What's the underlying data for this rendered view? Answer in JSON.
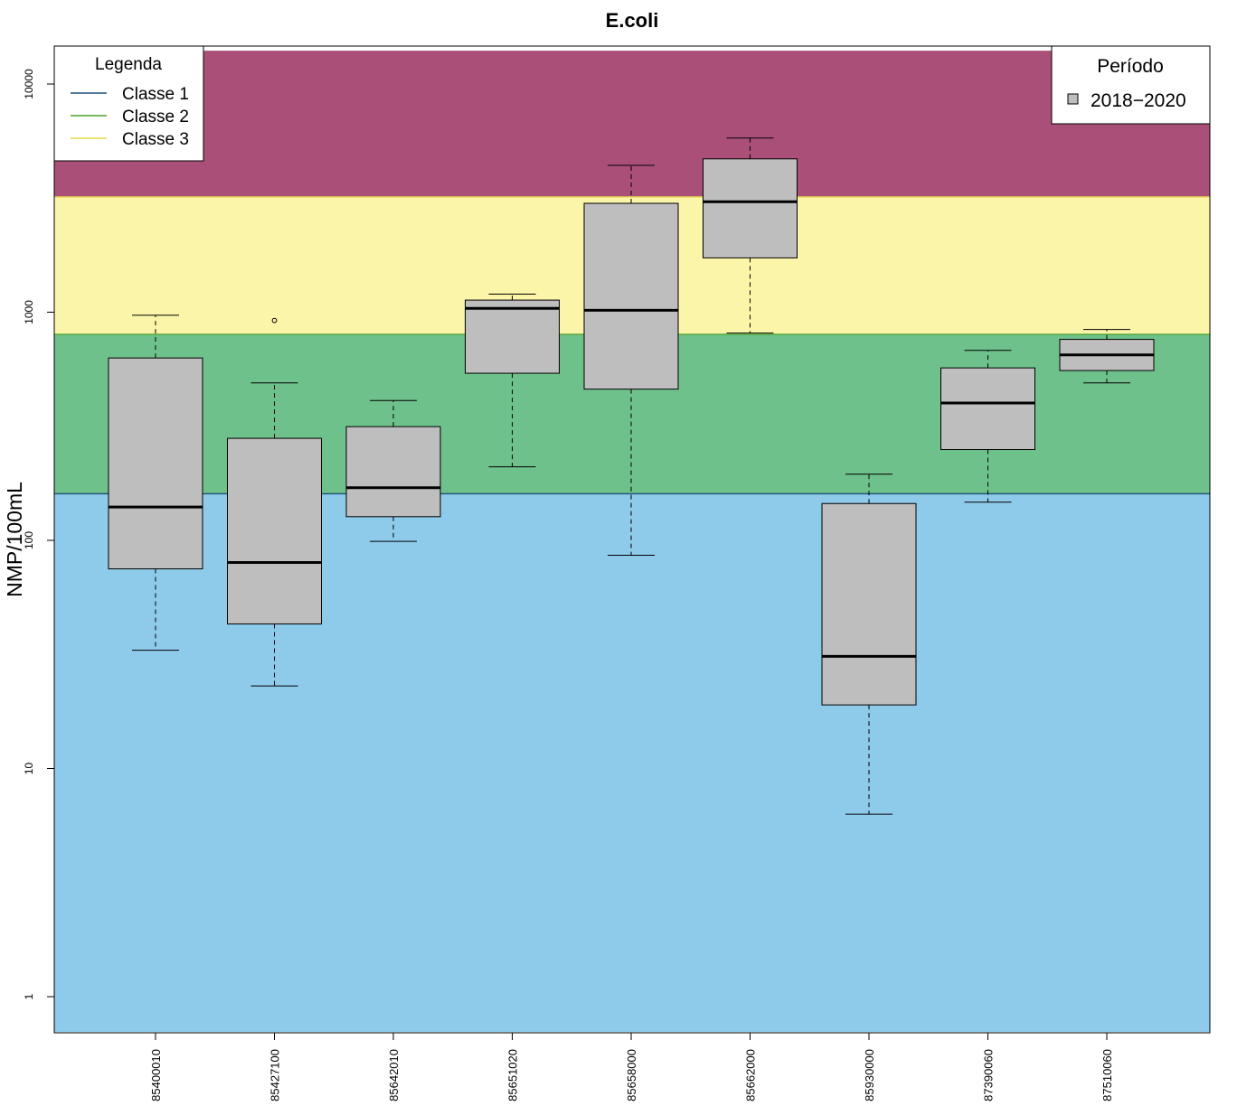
{
  "chart_data": {
    "type": "boxplot",
    "title": "E.coli",
    "ylabel": "NMP/100mL",
    "xlabel": "",
    "yscale": "log",
    "ylim": [
      0.7,
      14000
    ],
    "yticks": [
      1,
      10,
      100,
      1000,
      10000
    ],
    "ytick_labels": [
      "1",
      "10",
      "100",
      "1000",
      "10000"
    ],
    "categories": [
      "85400010",
      "85427100",
      "85642010",
      "85651020",
      "85658000",
      "85662000",
      "85930000",
      "87390060",
      "87510060"
    ],
    "boxes": [
      {
        "whisker_low": 33,
        "q1": 75,
        "median": 140,
        "q3": 630,
        "whisker_high": 970,
        "outliers": []
      },
      {
        "whisker_low": 23,
        "q1": 43,
        "median": 80,
        "q3": 280,
        "whisker_high": 490,
        "outliers": [
          920
        ]
      },
      {
        "whisker_low": 99,
        "q1": 127,
        "median": 170,
        "q3": 315,
        "whisker_high": 410,
        "outliers": []
      },
      {
        "whisker_low": 210,
        "q1": 540,
        "median": 1040,
        "q3": 1130,
        "whisker_high": 1200,
        "outliers": []
      },
      {
        "whisker_low": 86,
        "q1": 460,
        "median": 1020,
        "q3": 3000,
        "whisker_high": 4400,
        "outliers": []
      },
      {
        "whisker_low": 810,
        "q1": 1730,
        "median": 3050,
        "q3": 4700,
        "whisker_high": 5800,
        "outliers": []
      },
      {
        "whisker_low": 6.3,
        "q1": 19,
        "median": 31,
        "q3": 145,
        "whisker_high": 195,
        "outliers": []
      },
      {
        "whisker_low": 147,
        "q1": 250,
        "median": 400,
        "q3": 570,
        "whisker_high": 680,
        "outliers": []
      },
      {
        "whisker_low": 490,
        "q1": 555,
        "median": 650,
        "q3": 760,
        "whisker_high": 840,
        "outliers": []
      }
    ],
    "box_fill": "#bebebe",
    "bands": [
      {
        "from": 0.7,
        "to": 160,
        "color": "#8ecaea",
        "line_color": "#1f4e79"
      },
      {
        "from": 160,
        "to": 800,
        "color": "#6fc18b",
        "line_color": "#4aa32a"
      },
      {
        "from": 800,
        "to": 3200,
        "color": "#fbf5aa",
        "line_color": "#e6d84a"
      },
      {
        "from": 3200,
        "to": 14000,
        "color": "#aa5078",
        "line_color": "#8a3a5e"
      }
    ],
    "legend_classes": {
      "title": "Legenda",
      "placement": "top-left",
      "items": [
        {
          "label": "Classe 1",
          "color": "#1f4e79"
        },
        {
          "label": "Classe 2",
          "color": "#4aa32a"
        },
        {
          "label": "Classe 3",
          "color": "#e6d84a"
        }
      ]
    },
    "legend_period": {
      "title": "Período",
      "placement": "top-right",
      "items": [
        {
          "label": "2018−2020",
          "color": "#bebebe"
        }
      ]
    }
  }
}
